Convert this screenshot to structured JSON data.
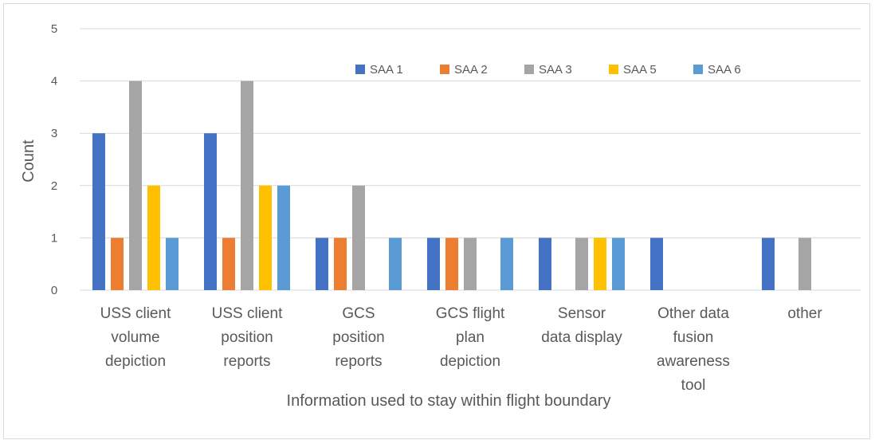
{
  "chart_data": {
    "type": "bar",
    "title": "",
    "xlabel": "Information used to stay within flight boundary",
    "ylabel": "Count",
    "ylim": [
      0,
      5
    ],
    "yticks": [
      0,
      1,
      2,
      3,
      4,
      5
    ],
    "grid": true,
    "legend_position": "top-right",
    "categories": [
      [
        "USS client",
        "volume",
        "depiction"
      ],
      [
        "USS client",
        "position",
        "reports"
      ],
      [
        "GCS",
        "position",
        "reports"
      ],
      [
        "GCS flight",
        "plan",
        "depiction"
      ],
      [
        "Sensor",
        "data display"
      ],
      [
        "Other data",
        "fusion",
        "awareness",
        "tool"
      ],
      [
        "other"
      ]
    ],
    "series": [
      {
        "name": "SAA 1",
        "color": "#4472c4",
        "values": [
          3,
          3,
          1,
          1,
          1,
          1,
          1
        ]
      },
      {
        "name": "SAA 2",
        "color": "#ed7d31",
        "values": [
          1,
          1,
          1,
          1,
          0,
          0,
          0
        ]
      },
      {
        "name": "SAA 3",
        "color": "#a5a5a5",
        "values": [
          4,
          4,
          2,
          1,
          1,
          0,
          1
        ]
      },
      {
        "name": "SAA 5",
        "color": "#ffc000",
        "values": [
          2,
          2,
          0,
          0,
          1,
          0,
          0
        ]
      },
      {
        "name": "SAA 6",
        "color": "#5b9bd5",
        "values": [
          1,
          2,
          1,
          1,
          1,
          0,
          0
        ]
      }
    ]
  }
}
